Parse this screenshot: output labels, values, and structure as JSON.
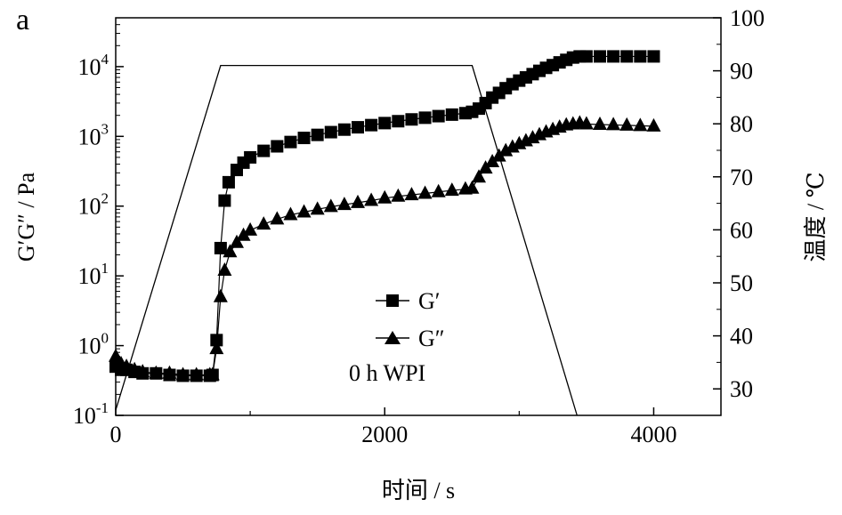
{
  "panel_label": "a",
  "chart_data": {
    "type": "scatter",
    "xlabel": "时间 / s",
    "ylabel_left": "G′G″ / Pa",
    "ylabel_right": "温度 / ℃",
    "xlim": [
      0,
      4500
    ],
    "x_ticks": [
      0,
      2000,
      4000
    ],
    "x_tick_labels": [
      "0",
      "2000",
      "4000"
    ],
    "ylim_left_log10": [
      -1,
      4.7
    ],
    "y_left_scale": "log",
    "y_left_ticks": [
      -1,
      0,
      1,
      2,
      3,
      4
    ],
    "y_left_tick_labels": [
      {
        "base": "10",
        "exp": "-1"
      },
      {
        "base": "10",
        "exp": "0"
      },
      {
        "base": "10",
        "exp": "1"
      },
      {
        "base": "10",
        "exp": "2"
      },
      {
        "base": "10",
        "exp": "3"
      },
      {
        "base": "10",
        "exp": "4"
      }
    ],
    "ylim_right": [
      25,
      100
    ],
    "y_right_ticks": [
      30,
      40,
      50,
      60,
      70,
      80,
      90,
      100
    ],
    "y_right_tick_labels": [
      "30",
      "40",
      "50",
      "60",
      "70",
      "80",
      "90",
      "100"
    ],
    "grid": false,
    "legend_position": "center",
    "legend": [
      {
        "label": "G′",
        "marker": "square"
      },
      {
        "label": "G″",
        "marker": "triangle"
      }
    ],
    "annotation": "0 h WPI",
    "series": [
      {
        "label": "G′",
        "axis": "left",
        "marker": "square",
        "x": [
          0,
          40,
          80,
          140,
          200,
          300,
          400,
          500,
          600,
          700,
          720,
          750,
          780,
          810,
          840,
          900,
          950,
          1000,
          1100,
          1200,
          1300,
          1400,
          1500,
          1600,
          1700,
          1800,
          1900,
          2000,
          2100,
          2200,
          2300,
          2400,
          2500,
          2600,
          2650,
          2700,
          2750,
          2800,
          2850,
          2900,
          2950,
          3000,
          3050,
          3100,
          3150,
          3200,
          3250,
          3300,
          3350,
          3400,
          3450,
          3500,
          3600,
          3700,
          3800,
          3900,
          4000
        ],
        "values": [
          0.5,
          0.45,
          0.45,
          0.42,
          0.4,
          0.4,
          0.38,
          0.37,
          0.37,
          0.37,
          0.38,
          1.2,
          25,
          120,
          220,
          330,
          420,
          500,
          620,
          720,
          830,
          950,
          1050,
          1150,
          1250,
          1350,
          1450,
          1550,
          1650,
          1750,
          1850,
          1950,
          2050,
          2150,
          2250,
          2500,
          3000,
          3600,
          4200,
          4900,
          5600,
          6300,
          7000,
          7800,
          8700,
          9600,
          10500,
          11500,
          12500,
          13500,
          14000,
          14000,
          14000,
          14000,
          14000,
          14000,
          14000
        ]
      },
      {
        "label": "G″",
        "axis": "left",
        "marker": "triangle",
        "x": [
          0,
          40,
          80,
          140,
          200,
          300,
          400,
          500,
          600,
          700,
          720,
          750,
          780,
          810,
          850,
          900,
          950,
          1000,
          1100,
          1200,
          1300,
          1400,
          1500,
          1600,
          1700,
          1800,
          1900,
          2000,
          2100,
          2200,
          2300,
          2400,
          2500,
          2600,
          2650,
          2700,
          2750,
          2800,
          2850,
          2900,
          2950,
          3000,
          3050,
          3100,
          3150,
          3200,
          3250,
          3300,
          3350,
          3400,
          3450,
          3500,
          3600,
          3700,
          3800,
          3900,
          4000
        ],
        "values": [
          0.7,
          0.55,
          0.5,
          0.45,
          0.42,
          0.4,
          0.4,
          0.38,
          0.38,
          0.38,
          0.38,
          0.9,
          5,
          12,
          22,
          30,
          38,
          45,
          55,
          65,
          75,
          82,
          90,
          98,
          105,
          112,
          120,
          130,
          138,
          145,
          152,
          160,
          168,
          175,
          180,
          260,
          350,
          430,
          520,
          620,
          700,
          780,
          860,
          950,
          1050,
          1150,
          1250,
          1350,
          1450,
          1500,
          1550,
          1500,
          1480,
          1460,
          1440,
          1420,
          1400
        ]
      },
      {
        "label": "温度",
        "axis": "right",
        "marker": "none",
        "x": [
          0,
          780,
          2650,
          3430
        ],
        "values": [
          26,
          91,
          91,
          25
        ]
      }
    ]
  }
}
